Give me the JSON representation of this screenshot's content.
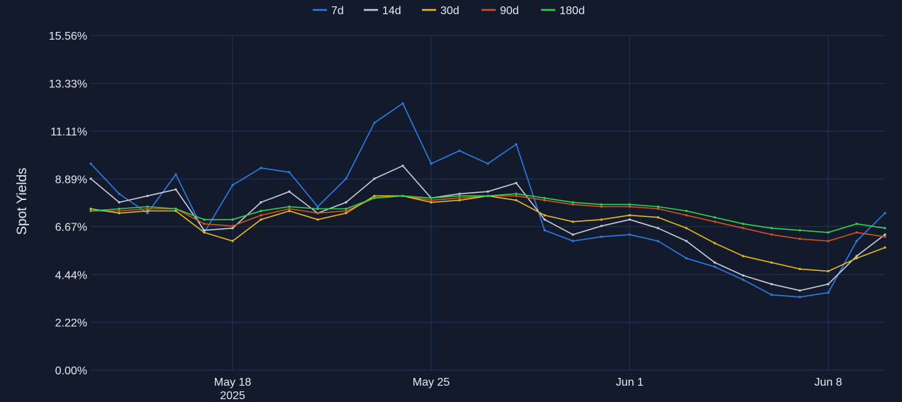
{
  "chart_data": {
    "type": "line",
    "ylabel": "Spot Yields",
    "xlabel": "",
    "y_unit": "%",
    "ylim": [
      0,
      15.56
    ],
    "yticks": [
      "0.00%",
      "2.22%",
      "4.44%",
      "6.67%",
      "8.89%",
      "11.11%",
      "13.33%",
      "15.56%"
    ],
    "ytick_values": [
      0,
      2.22,
      4.44,
      6.67,
      8.89,
      11.11,
      13.33,
      15.56
    ],
    "xlim": [
      "2025-05-13",
      "2025-06-10"
    ],
    "xticks": [
      {
        "date": "2025-05-18",
        "label": "May 18",
        "sublabel": "2025"
      },
      {
        "date": "2025-05-25",
        "label": "May 25",
        "sublabel": ""
      },
      {
        "date": "2025-06-01",
        "label": "Jun 1",
        "sublabel": ""
      },
      {
        "date": "2025-06-08",
        "label": "Jun 8",
        "sublabel": ""
      }
    ],
    "grid": true,
    "legend_position": "top-center",
    "series": [
      {
        "name": "7d",
        "color": "#2f7be8",
        "x": [
          "2025-05-13",
          "2025-05-14",
          "2025-05-15",
          "2025-05-16",
          "2025-05-17",
          "2025-05-18",
          "2025-05-19",
          "2025-05-20",
          "2025-05-21",
          "2025-05-22",
          "2025-05-23",
          "2025-05-24",
          "2025-05-25",
          "2025-05-26",
          "2025-05-27",
          "2025-05-28",
          "2025-05-29",
          "2025-05-30",
          "2025-05-31",
          "2025-06-01",
          "2025-06-02",
          "2025-06-03",
          "2025-06-04",
          "2025-06-05",
          "2025-06-06",
          "2025-06-07",
          "2025-06-08",
          "2025-06-09",
          "2025-06-10"
        ],
        "values": [
          9.6,
          8.2,
          7.3,
          9.1,
          6.4,
          8.6,
          9.4,
          9.2,
          7.6,
          8.9,
          11.5,
          12.4,
          9.6,
          10.2,
          9.6,
          10.5,
          6.5,
          6.0,
          6.2,
          6.3,
          6.0,
          5.2,
          4.8,
          4.2,
          3.5,
          3.4,
          3.6,
          6.0,
          7.3
        ]
      },
      {
        "name": "14d",
        "color": "#c8ccd6",
        "x": [
          "2025-05-13",
          "2025-05-14",
          "2025-05-15",
          "2025-05-16",
          "2025-05-17",
          "2025-05-18",
          "2025-05-19",
          "2025-05-20",
          "2025-05-21",
          "2025-05-22",
          "2025-05-23",
          "2025-05-24",
          "2025-05-25",
          "2025-05-26",
          "2025-05-27",
          "2025-05-28",
          "2025-05-29",
          "2025-05-30",
          "2025-05-31",
          "2025-06-01",
          "2025-06-02",
          "2025-06-03",
          "2025-06-04",
          "2025-06-05",
          "2025-06-06",
          "2025-06-07",
          "2025-06-08",
          "2025-06-09",
          "2025-06-10"
        ],
        "values": [
          8.9,
          7.8,
          8.1,
          8.4,
          6.5,
          6.6,
          7.8,
          8.3,
          7.3,
          7.8,
          8.9,
          9.5,
          8.0,
          8.2,
          8.3,
          8.7,
          7.0,
          6.3,
          6.7,
          7.0,
          6.6,
          6.0,
          5.0,
          4.4,
          4.0,
          3.7,
          4.0,
          5.3,
          6.3
        ]
      },
      {
        "name": "30d",
        "color": "#e3b91c",
        "x": [
          "2025-05-13",
          "2025-05-14",
          "2025-05-15",
          "2025-05-16",
          "2025-05-17",
          "2025-05-18",
          "2025-05-19",
          "2025-05-20",
          "2025-05-21",
          "2025-05-22",
          "2025-05-23",
          "2025-05-24",
          "2025-05-25",
          "2025-05-26",
          "2025-05-27",
          "2025-05-28",
          "2025-05-29",
          "2025-05-30",
          "2025-05-31",
          "2025-06-01",
          "2025-06-02",
          "2025-06-03",
          "2025-06-04",
          "2025-06-05",
          "2025-06-06",
          "2025-06-07",
          "2025-06-08",
          "2025-06-09",
          "2025-06-10"
        ],
        "values": [
          7.5,
          7.3,
          7.4,
          7.4,
          6.4,
          6.0,
          7.0,
          7.4,
          7.0,
          7.3,
          8.1,
          8.1,
          7.8,
          7.9,
          8.1,
          7.9,
          7.2,
          6.9,
          7.0,
          7.2,
          7.1,
          6.6,
          5.9,
          5.3,
          5.0,
          4.7,
          4.6,
          5.2,
          5.7
        ]
      },
      {
        "name": "90d",
        "color": "#d2541e",
        "x": [
          "2025-05-13",
          "2025-05-14",
          "2025-05-15",
          "2025-05-16",
          "2025-05-17",
          "2025-05-18",
          "2025-05-19",
          "2025-05-20",
          "2025-05-21",
          "2025-05-22",
          "2025-05-23",
          "2025-05-24",
          "2025-05-25",
          "2025-05-26",
          "2025-05-27",
          "2025-05-28",
          "2025-05-29",
          "2025-05-30",
          "2025-05-31",
          "2025-06-01",
          "2025-06-02",
          "2025-06-03",
          "2025-06-04",
          "2025-06-05",
          "2025-06-06",
          "2025-06-07",
          "2025-06-08",
          "2025-06-09",
          "2025-06-10"
        ],
        "values": [
          7.4,
          7.4,
          7.5,
          7.5,
          6.8,
          6.7,
          7.2,
          7.5,
          7.3,
          7.4,
          8.0,
          8.1,
          7.9,
          8.0,
          8.1,
          8.1,
          7.9,
          7.7,
          7.6,
          7.6,
          7.5,
          7.2,
          6.9,
          6.6,
          6.3,
          6.1,
          6.0,
          6.4,
          6.2
        ]
      },
      {
        "name": "180d",
        "color": "#33d04f",
        "x": [
          "2025-05-13",
          "2025-05-14",
          "2025-05-15",
          "2025-05-16",
          "2025-05-17",
          "2025-05-18",
          "2025-05-19",
          "2025-05-20",
          "2025-05-21",
          "2025-05-22",
          "2025-05-23",
          "2025-05-24",
          "2025-05-25",
          "2025-05-26",
          "2025-05-27",
          "2025-05-28",
          "2025-05-29",
          "2025-05-30",
          "2025-05-31",
          "2025-06-01",
          "2025-06-02",
          "2025-06-03",
          "2025-06-04",
          "2025-06-05",
          "2025-06-06",
          "2025-06-07",
          "2025-06-08",
          "2025-06-09",
          "2025-06-10"
        ],
        "values": [
          7.4,
          7.5,
          7.6,
          7.5,
          7.0,
          7.0,
          7.4,
          7.6,
          7.5,
          7.5,
          8.0,
          8.1,
          8.0,
          8.1,
          8.1,
          8.2,
          8.0,
          7.8,
          7.7,
          7.7,
          7.6,
          7.4,
          7.1,
          6.8,
          6.6,
          6.5,
          6.4,
          6.8,
          6.6
        ]
      }
    ]
  }
}
